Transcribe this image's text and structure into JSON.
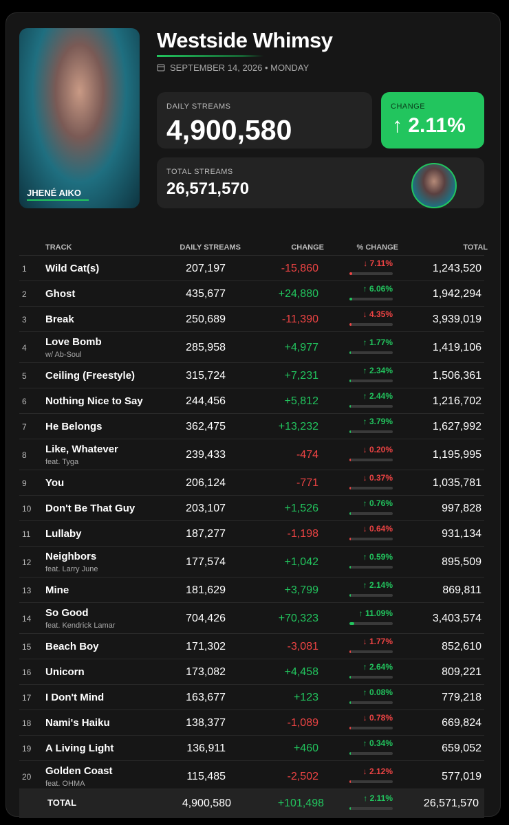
{
  "header": {
    "title": "Westside Whimsy",
    "date": "SEPTEMBER 14, 2026 • MONDAY",
    "artist": "JHENÉ AIKO",
    "daily_label": "DAILY STREAMS",
    "daily_value": "4,900,580",
    "change_label": "CHANGE",
    "change_value": "↑ 2.11%",
    "total_label": "TOTAL STREAMS",
    "total_value": "26,571,570"
  },
  "table": {
    "columns": [
      "TRACK",
      "DAILY STREAMS",
      "CHANGE",
      "% CHANGE",
      "TOTAL"
    ],
    "rows": [
      {
        "rank": 1,
        "track": "Wild Cat(s)",
        "daily": "207,197",
        "change": "-15,860",
        "pct": {
          "value": 7.11,
          "label": "↓ 7.11%"
        },
        "direction": "down",
        "total": "1,243,520"
      },
      {
        "rank": 2,
        "track": "Ghost",
        "daily": "435,677",
        "change": "+24,880",
        "pct": {
          "value": 6.06,
          "label": "↑ 6.06%"
        },
        "direction": "up",
        "total": "1,942,294"
      },
      {
        "rank": 3,
        "track": "Break",
        "daily": "250,689",
        "change": "-11,390",
        "pct": {
          "value": 4.35,
          "label": "↓ 4.35%"
        },
        "direction": "down",
        "total": "3,939,019"
      },
      {
        "rank": 4,
        "track": "Love Bomb",
        "sub": "w/ Ab-Soul",
        "daily": "285,958",
        "change": "+4,977",
        "pct": {
          "value": 1.77,
          "label": "↑ 1.77%"
        },
        "direction": "up",
        "total": "1,419,106"
      },
      {
        "rank": 5,
        "track": "Ceiling (Freestyle)",
        "daily": "315,724",
        "change": "+7,231",
        "pct": {
          "value": 2.34,
          "label": "↑ 2.34%"
        },
        "direction": "up",
        "total": "1,506,361"
      },
      {
        "rank": 6,
        "track": "Nothing Nice to Say",
        "daily": "244,456",
        "change": "+5,812",
        "pct": {
          "value": 2.44,
          "label": "↑ 2.44%"
        },
        "direction": "up",
        "total": "1,216,702"
      },
      {
        "rank": 7,
        "track": "He Belongs",
        "daily": "362,475",
        "change": "+13,232",
        "pct": {
          "value": 3.79,
          "label": "↑ 3.79%"
        },
        "direction": "up",
        "total": "1,627,992"
      },
      {
        "rank": 8,
        "track": "Like, Whatever",
        "sub": "feat. Tyga",
        "daily": "239,433",
        "change": "-474",
        "pct": {
          "value": 0.2,
          "label": "↓ 0.20%"
        },
        "direction": "down",
        "total": "1,195,995"
      },
      {
        "rank": 9,
        "track": "You",
        "daily": "206,124",
        "change": "-771",
        "pct": {
          "value": 0.37,
          "label": "↓ 0.37%"
        },
        "direction": "down",
        "total": "1,035,781"
      },
      {
        "rank": 10,
        "track": "Don't Be That Guy",
        "daily": "203,107",
        "change": "+1,526",
        "pct": {
          "value": 0.76,
          "label": "↑ 0.76%"
        },
        "direction": "up",
        "total": "997,828"
      },
      {
        "rank": 11,
        "track": "Lullaby",
        "daily": "187,277",
        "change": "-1,198",
        "pct": {
          "value": 0.64,
          "label": "↓ 0.64%"
        },
        "direction": "down",
        "total": "931,134"
      },
      {
        "rank": 12,
        "track": "Neighbors",
        "sub": "feat. Larry June",
        "daily": "177,574",
        "change": "+1,042",
        "pct": {
          "value": 0.59,
          "label": "↑ 0.59%"
        },
        "direction": "up",
        "total": "895,509"
      },
      {
        "rank": 13,
        "track": "Mine",
        "daily": "181,629",
        "change": "+3,799",
        "pct": {
          "value": 2.14,
          "label": "↑ 2.14%"
        },
        "direction": "up",
        "total": "869,811"
      },
      {
        "rank": 14,
        "track": "So Good",
        "sub": "feat. Kendrick Lamar",
        "daily": "704,426",
        "change": "+70,323",
        "pct": {
          "value": 11.09,
          "label": "↑ 11.09%"
        },
        "direction": "up",
        "total": "3,403,574"
      },
      {
        "rank": 15,
        "track": "Beach Boy",
        "daily": "171,302",
        "change": "-3,081",
        "pct": {
          "value": 1.77,
          "label": "↓ 1.77%"
        },
        "direction": "down",
        "total": "852,610"
      },
      {
        "rank": 16,
        "track": "Unicorn",
        "daily": "173,082",
        "change": "+4,458",
        "pct": {
          "value": 2.64,
          "label": "↑ 2.64%"
        },
        "direction": "up",
        "total": "809,221"
      },
      {
        "rank": 17,
        "track": "I Don't Mind",
        "daily": "163,677",
        "change": "+123",
        "pct": {
          "value": 0.08,
          "label": "↑ 0.08%"
        },
        "direction": "up",
        "total": "779,218"
      },
      {
        "rank": 18,
        "track": "Nami's Haiku",
        "daily": "138,377",
        "change": "-1,089",
        "pct": {
          "value": 0.78,
          "label": "↓ 0.78%"
        },
        "direction": "down",
        "total": "669,824"
      },
      {
        "rank": 19,
        "track": "A Living Light",
        "daily": "136,911",
        "change": "+460",
        "pct": {
          "value": 0.34,
          "label": "↑ 0.34%"
        },
        "direction": "up",
        "total": "659,052"
      },
      {
        "rank": 20,
        "track": "Golden Coast",
        "sub": "feat. OHMA",
        "daily": "115,485",
        "change": "-2,502",
        "pct": {
          "value": 2.12,
          "label": "↓ 2.12%"
        },
        "direction": "down",
        "total": "577,019"
      }
    ],
    "total_row": {
      "track": "TOTAL",
      "daily": "4,900,580",
      "change": "+101,498",
      "pct": {
        "value": 2.11,
        "label": "↑ 2.11%"
      },
      "direction": "up",
      "total": "26,571,570"
    }
  }
}
